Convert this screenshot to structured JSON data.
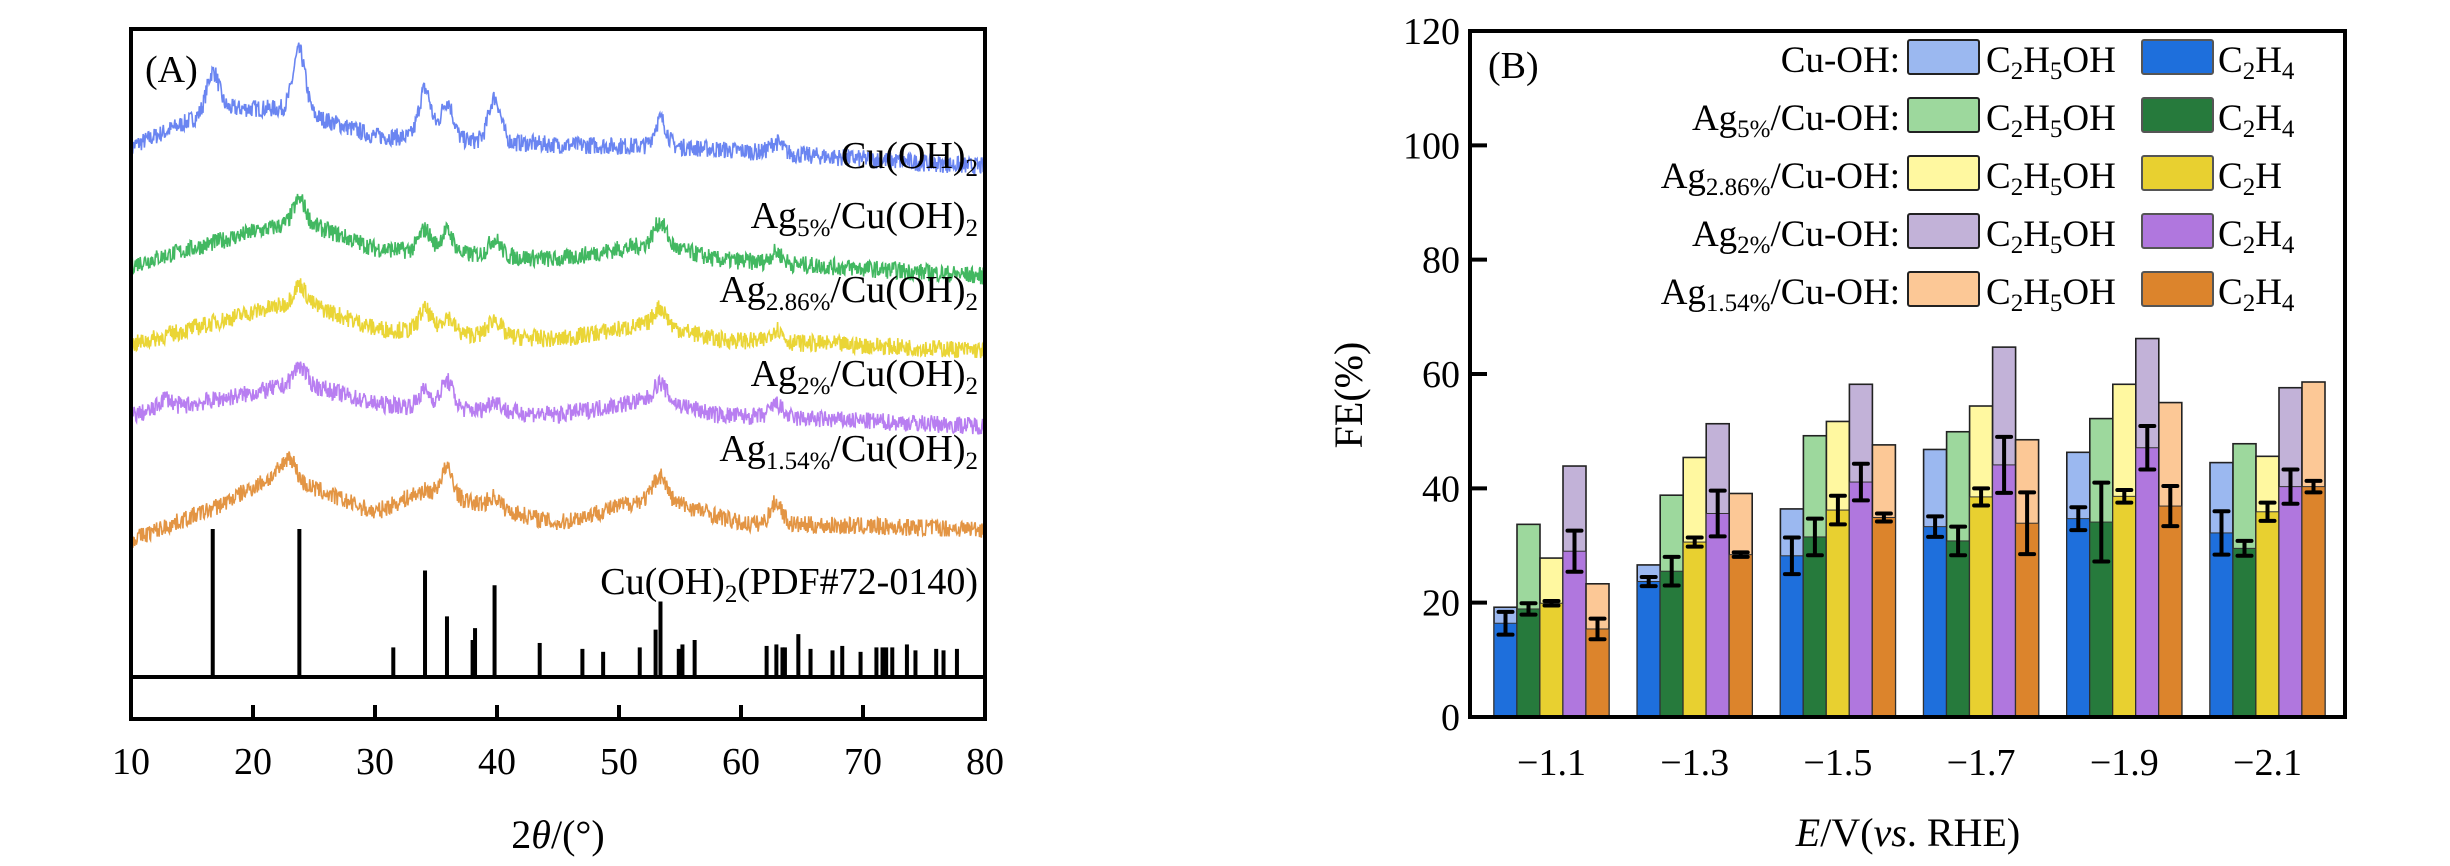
{
  "figure": {
    "panel_a_tag": "(A)",
    "panel_b_tag": "(B)"
  },
  "chart_data": [
    {
      "type": "line",
      "panel": "A",
      "title": "",
      "xlabel": "2θ/(°)",
      "xlabel_parts": {
        "pre": "2",
        "italic": "θ",
        "post": "/(°)"
      },
      "ylabel": "",
      "xlim": [
        10,
        80
      ],
      "xticks": [
        10,
        20,
        30,
        40,
        50,
        60,
        70,
        80
      ],
      "grid": false,
      "series": [
        {
          "name": "Cu(OH)2",
          "label": {
            "base": "Cu(OH)",
            "sub": "2",
            "pre": "",
            "pre_sub": ""
          },
          "color": "#5a78f0",
          "peaks": [
            [
              16.7,
              0.35
            ],
            [
              23.8,
              0.55
            ],
            [
              34.1,
              0.45
            ],
            [
              35.9,
              0.35
            ],
            [
              39.8,
              0.4
            ],
            [
              53.4,
              0.25
            ],
            [
              62.9,
              0.1
            ]
          ],
          "baseline": [
            [
              10,
              0.0
            ],
            [
              17,
              0.35
            ],
            [
              23,
              0.35
            ],
            [
              30,
              0.1
            ],
            [
              45,
              0.02
            ],
            [
              55,
              0.0
            ],
            [
              80,
              -0.18
            ]
          ],
          "offset": 4
        },
        {
          "name": "Ag5%/Cu(OH)2",
          "label": {
            "pre": "Ag",
            "pre_sub": "5%",
            "base": "/Cu(OH)",
            "sub": "2"
          },
          "color": "#2db050",
          "peaks": [
            [
              23.8,
              0.2
            ],
            [
              34.1,
              0.2
            ],
            [
              35.9,
              0.2
            ],
            [
              39.8,
              0.15
            ],
            [
              53.4,
              0.2
            ],
            [
              62.9,
              0.1
            ]
          ],
          "baseline": [
            [
              10,
              0.0
            ],
            [
              20,
              0.3
            ],
            [
              24,
              0.4
            ],
            [
              30,
              0.15
            ],
            [
              45,
              0.05
            ],
            [
              53,
              0.2
            ],
            [
              58,
              0.05
            ],
            [
              80,
              -0.1
            ]
          ],
          "offset": 3
        },
        {
          "name": "Ag2.86%/Cu(OH)2",
          "label": {
            "pre": "Ag",
            "pre_sub": "2.86%",
            "base": "/Cu(OH)",
            "sub": "2"
          },
          "color": "#e8d020",
          "peaks": [
            [
              23.8,
              0.15
            ],
            [
              34.1,
              0.2
            ],
            [
              35.9,
              0.15
            ],
            [
              39.8,
              0.15
            ],
            [
              53.4,
              0.15
            ],
            [
              62.9,
              0.12
            ]
          ],
          "baseline": [
            [
              10,
              0.0
            ],
            [
              20,
              0.3
            ],
            [
              24,
              0.4
            ],
            [
              30,
              0.15
            ],
            [
              45,
              0.05
            ],
            [
              53,
              0.2
            ],
            [
              58,
              0.05
            ],
            [
              80,
              -0.05
            ]
          ],
          "offset": 2
        },
        {
          "name": "Ag2%/Cu(OH)2",
          "label": {
            "pre": "Ag",
            "pre_sub": "2%",
            "base": "/Cu(OH)",
            "sub": "2"
          },
          "color": "#b070f0",
          "peaks": [
            [
              12.8,
              0.1
            ],
            [
              23.8,
              0.15
            ],
            [
              34.1,
              0.15
            ],
            [
              35.9,
              0.25
            ],
            [
              39.8,
              0.1
            ],
            [
              53.4,
              0.15
            ],
            [
              62.9,
              0.12
            ]
          ],
          "baseline": [
            [
              10,
              0.0
            ],
            [
              20,
              0.2
            ],
            [
              24,
              0.3
            ],
            [
              30,
              0.1
            ],
            [
              45,
              0.0
            ],
            [
              53,
              0.15
            ],
            [
              58,
              0.0
            ],
            [
              80,
              -0.1
            ]
          ],
          "offset": 1
        },
        {
          "name": "Ag1.54%/Cu(OH)2",
          "label": {
            "pre": "Ag",
            "pre_sub": "1.54%",
            "base": "/Cu(OH)",
            "sub": "2"
          },
          "color": "#e08a30",
          "peaks": [
            [
              23.0,
              0.2
            ],
            [
              35.9,
              0.25
            ],
            [
              39.8,
              0.1
            ],
            [
              53.4,
              0.2
            ],
            [
              62.9,
              0.2
            ]
          ],
          "baseline": [
            [
              10,
              0.0
            ],
            [
              17,
              0.3
            ],
            [
              22,
              0.6
            ],
            [
              30,
              0.25
            ],
            [
              34,
              0.45
            ],
            [
              45,
              0.15
            ],
            [
              53,
              0.4
            ],
            [
              60,
              0.15
            ],
            [
              80,
              0.1
            ]
          ],
          "offset": 0
        }
      ],
      "reference": {
        "label": {
          "base": "Cu(OH)",
          "sub": "2",
          "post": "(PDF#72-0140)"
        },
        "name": "Cu(OH)2(PDF#72-0140)",
        "sticks": [
          [
            16.7,
            100
          ],
          [
            23.8,
            100
          ],
          [
            31.5,
            20
          ],
          [
            34.1,
            72
          ],
          [
            35.9,
            41
          ],
          [
            38.0,
            25
          ],
          [
            38.2,
            33
          ],
          [
            39.8,
            62
          ],
          [
            43.5,
            23
          ],
          [
            47.0,
            19
          ],
          [
            48.7,
            17
          ],
          [
            51.7,
            20
          ],
          [
            53.0,
            32
          ],
          [
            53.4,
            51
          ],
          [
            54.9,
            19
          ],
          [
            55.2,
            22
          ],
          [
            56.2,
            25
          ],
          [
            62.1,
            21
          ],
          [
            62.9,
            22
          ],
          [
            63.4,
            20
          ],
          [
            63.6,
            20
          ],
          [
            64.7,
            29
          ],
          [
            65.7,
            19
          ],
          [
            67.5,
            18
          ],
          [
            68.3,
            21
          ],
          [
            69.8,
            17
          ],
          [
            71.1,
            20
          ],
          [
            71.6,
            20
          ],
          [
            71.9,
            20
          ],
          [
            72.4,
            20
          ],
          [
            73.6,
            22
          ],
          [
            74.3,
            18
          ],
          [
            76.0,
            19
          ],
          [
            76.6,
            18
          ],
          [
            77.7,
            19
          ]
        ]
      }
    },
    {
      "type": "bar",
      "panel": "B",
      "title": "",
      "xlabel": "E/V(vs. RHE)",
      "xlabel_parts": {
        "e": "E",
        "mid": "/V(",
        "vs": "vs",
        "post": ". RHE)"
      },
      "ylabel": "FE(%)",
      "ylim": [
        0,
        120
      ],
      "yticks": [
        0,
        20,
        40,
        60,
        80,
        100,
        120
      ],
      "categories": [
        "−1.1",
        "−1.3",
        "−1.5",
        "−1.7",
        "−1.9",
        "−2.1"
      ],
      "grid": false,
      "legend_position": "top-right",
      "legend_ethanol": {
        "base": "C",
        "s1": "2",
        "mid": "H",
        "s2": "5",
        "post": "OH"
      },
      "series": [
        {
          "name": "Cu-OH",
          "label": {
            "pre": "Cu-OH:",
            "pre_sub": "",
            "post": ""
          },
          "c2h4_label": {
            "base": "C",
            "s1": "2",
            "mid": "H",
            "s2": "4"
          },
          "color_c2h5oh": "#9bb8f0",
          "color_c2h4": "#1e6fdc",
          "C2H5OH_total": [
            19.2,
            26.6,
            36.4,
            46.8,
            46.3,
            44.5
          ],
          "C2H4": [
            16.4,
            23.7,
            28.2,
            33.3,
            34.7,
            32.2
          ],
          "C2H4_err": [
            2.0,
            0.8,
            3.2,
            1.8,
            2.0,
            3.8
          ]
        },
        {
          "name": "Ag5%/Cu-OH",
          "label": {
            "pre": "Ag",
            "pre_sub": "5%",
            "post": "/Cu-OH:"
          },
          "c2h4_label": {
            "base": "C",
            "s1": "2",
            "mid": "H",
            "s2": "4"
          },
          "color_c2h5oh": "#9dd89d",
          "color_c2h4": "#267a3c",
          "C2H5OH_total": [
            33.7,
            38.8,
            49.2,
            49.9,
            52.2,
            47.8
          ],
          "C2H4": [
            18.9,
            25.5,
            31.5,
            30.8,
            34.1,
            29.5
          ],
          "C2H4_err": [
            1.0,
            2.5,
            3.2,
            2.5,
            6.9,
            1.3
          ]
        },
        {
          "name": "Ag2.86%/Cu-OH",
          "label": {
            "pre": "Ag",
            "pre_sub": "2.86%",
            "post": "/Cu-OH:"
          },
          "c2h4_label": {
            "base": "C",
            "s1": "2",
            "mid": "H",
            "s2": ""
          },
          "color_c2h5oh": "#fff8a0",
          "color_c2h4": "#e8d030",
          "C2H5OH_total": [
            27.8,
            45.4,
            51.7,
            54.4,
            58.2,
            45.6
          ],
          "C2H4": [
            19.9,
            30.6,
            36.2,
            38.5,
            38.6,
            35.9
          ],
          "C2H4_err": [
            0.4,
            0.8,
            2.5,
            1.5,
            1.1,
            1.6
          ]
        },
        {
          "name": "Ag2%/Cu-OH",
          "label": {
            "pre": "Ag",
            "pre_sub": "2%",
            "post": "/Cu-OH:"
          },
          "c2h4_label": {
            "base": "C",
            "s1": "2",
            "mid": "H",
            "s2": "4"
          },
          "color_c2h5oh": "#c2b2d8",
          "color_c2h4": "#b077de",
          "C2H5OH_total": [
            43.9,
            51.3,
            58.2,
            64.7,
            66.2,
            57.6
          ],
          "C2H4": [
            29.0,
            35.6,
            41.1,
            44.1,
            47.1,
            40.3
          ],
          "C2H4_err": [
            3.6,
            4.0,
            3.2,
            4.9,
            3.8,
            3.0
          ]
        },
        {
          "name": "Ag1.54%/Cu-OH",
          "label": {
            "pre": "Ag",
            "pre_sub": "1.54%",
            "post": "/Cu-OH:"
          },
          "c2h4_label": {
            "base": "C",
            "s1": "2",
            "mid": "H",
            "s2": "4"
          },
          "color_c2h5oh": "#fcc896",
          "color_c2h4": "#dc842c",
          "C2H5OH_total": [
            23.3,
            39.1,
            47.6,
            48.5,
            55.0,
            58.6
          ],
          "C2H4": [
            15.4,
            28.4,
            34.9,
            33.9,
            36.9,
            40.3
          ],
          "C2H4_err": [
            1.8,
            0.4,
            0.7,
            5.4,
            3.5,
            1.0
          ]
        }
      ]
    }
  ]
}
